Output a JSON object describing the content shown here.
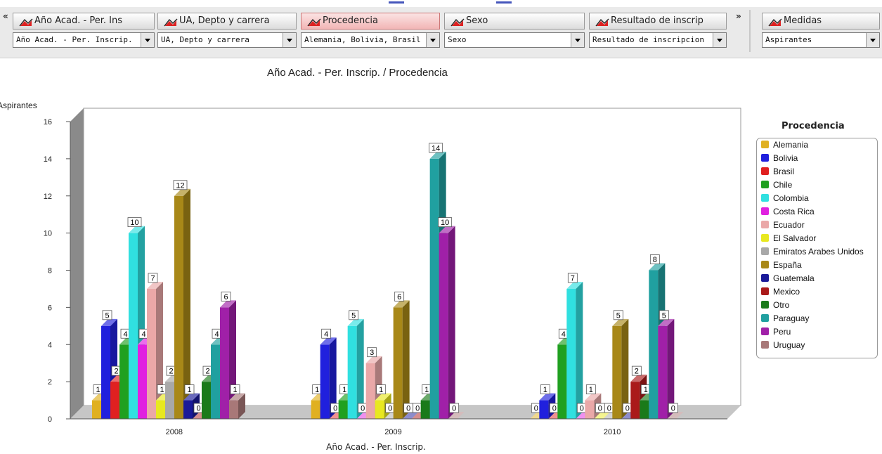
{
  "toolbar": {
    "nav_left": "«",
    "nav_right": "»",
    "dimensions": [
      {
        "header": "Año Acad. - Per. Ins",
        "select": "Año Acad. - Per. Inscrip.",
        "active": false
      },
      {
        "header": "UA, Depto y carrera",
        "select": "UA, Depto y carrera",
        "active": false
      },
      {
        "header": "Procedencia",
        "select": "Alemania, Bolivia, Brasil",
        "active": true
      },
      {
        "header": "Sexo",
        "select": "Sexo",
        "active": false
      },
      {
        "header": "Resultado de inscrip",
        "select": "Resultado de inscripcion",
        "active": false
      }
    ],
    "measures": {
      "header": "Medidas",
      "select": "Aspirantes"
    }
  },
  "chart_data": {
    "type": "bar",
    "title": "Año Acad. - Per. Inscrip. / Procedencia",
    "xlabel": "Año Acad. - Per. Inscrip.",
    "ylabel": "Aspirantes",
    "ylim": [
      0,
      16
    ],
    "yticks": [
      0,
      2,
      4,
      6,
      8,
      10,
      12,
      14,
      16
    ],
    "categories": [
      "2008",
      "2009",
      "2010"
    ],
    "legend_title": "Procedencia",
    "legend_position": "right",
    "series": [
      {
        "name": "Alemania",
        "color": "#e0b020",
        "values": [
          1,
          1,
          0
        ]
      },
      {
        "name": "Bolivia",
        "color": "#2020dd",
        "values": [
          5,
          4,
          1
        ]
      },
      {
        "name": "Brasil",
        "color": "#e02020",
        "values": [
          2,
          0,
          0
        ]
      },
      {
        "name": "Chile",
        "color": "#20a020",
        "values": [
          4,
          1,
          4
        ]
      },
      {
        "name": "Colombia",
        "color": "#30e0e0",
        "values": [
          10,
          5,
          7
        ]
      },
      {
        "name": "Costa Rica",
        "color": "#e020e0",
        "values": [
          4,
          0,
          0
        ]
      },
      {
        "name": "Ecuador",
        "color": "#eaa8a8",
        "values": [
          7,
          3,
          1
        ]
      },
      {
        "name": "El Salvador",
        "color": "#e8e820",
        "values": [
          1,
          1,
          0
        ]
      },
      {
        "name": "Emiratos Arabes Unidos",
        "color": "#a8a8a8",
        "values": [
          2,
          0,
          0
        ]
      },
      {
        "name": "España",
        "color": "#a88818",
        "values": [
          12,
          6,
          5
        ]
      },
      {
        "name": "Guatemala",
        "color": "#1a1a99",
        "values": [
          1,
          0,
          0
        ]
      },
      {
        "name": "Mexico",
        "color": "#aa1a1a",
        "values": [
          0,
          0,
          2
        ]
      },
      {
        "name": "Otro",
        "color": "#1a7a1a",
        "values": [
          2,
          1,
          1
        ]
      },
      {
        "name": "Paraguay",
        "color": "#20a0a0",
        "values": [
          4,
          14,
          8
        ]
      },
      {
        "name": "Peru",
        "color": "#a020a8",
        "values": [
          6,
          10,
          5
        ]
      },
      {
        "name": "Uruguay",
        "color": "#a87878",
        "values": [
          1,
          0,
          0
        ]
      }
    ]
  }
}
